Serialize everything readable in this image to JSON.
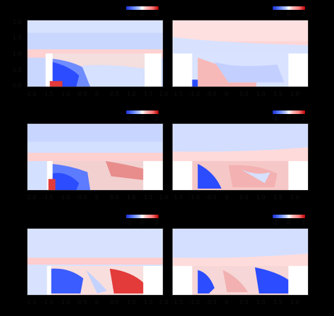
{
  "colorbar": {
    "labels": [
      "-2",
      "0",
      "2"
    ]
  },
  "axis": {
    "y_ticks": [
      "0.0",
      "0.5",
      "1.0",
      "1.5",
      "2.0"
    ],
    "x_ticks": [
      "-2.0",
      "-1.5",
      "-1.0",
      "-0.5",
      "0",
      "0.5",
      "1.0",
      "1.5",
      "2.0"
    ]
  },
  "colors": {
    "blue": "#2b4cff",
    "light_blue": "#c8d6ff",
    "pink": "#ffd4d4",
    "red": "#e33a3a",
    "white": "#ffffff"
  }
}
